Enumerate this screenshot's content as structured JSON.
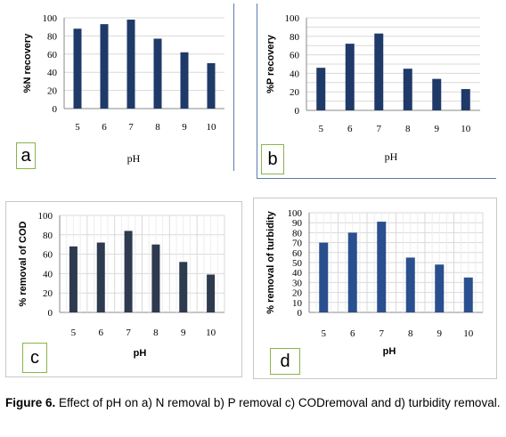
{
  "chart_data": [
    {
      "id": "a",
      "type": "bar",
      "categories": [
        "5",
        "6",
        "7",
        "8",
        "9",
        "10"
      ],
      "values": [
        88,
        93,
        98,
        77,
        62,
        50
      ],
      "xlabel": "pH",
      "ylabel": "%N recovery",
      "ylim": [
        0,
        100
      ],
      "yticks": [
        0,
        20,
        40,
        60,
        80,
        100
      ],
      "grid": true,
      "bar_color": "#1f3a68",
      "panel_label": "a"
    },
    {
      "id": "b",
      "type": "bar",
      "categories": [
        "5",
        "6",
        "7",
        "8",
        "9",
        "10"
      ],
      "values": [
        46,
        72,
        83,
        45,
        34,
        23
      ],
      "xlabel": "pH",
      "ylabel": "%P recovery",
      "ylim": [
        0,
        100
      ],
      "yticks": [
        0,
        10,
        20,
        30,
        40,
        50,
        60,
        70,
        80,
        90,
        100
      ],
      "ytick_labels_shown": [
        0,
        20,
        40,
        60,
        80,
        100
      ],
      "grid": true,
      "bar_color": "#1f3a68",
      "panel_label": "b"
    },
    {
      "id": "c",
      "type": "bar",
      "categories": [
        "5",
        "6",
        "7",
        "8",
        "9",
        "10"
      ],
      "values": [
        68,
        72,
        84,
        70,
        52,
        39
      ],
      "xlabel": "pH",
      "ylabel": "% removal of COD",
      "ylim": [
        0,
        100
      ],
      "yticks": [
        0,
        20,
        40,
        60,
        80,
        100
      ],
      "grid": true,
      "bar_color": "#2e3a4e",
      "panel_label": "c"
    },
    {
      "id": "d",
      "type": "bar",
      "categories": [
        "5",
        "6",
        "7",
        "8",
        "9",
        "10"
      ],
      "values": [
        70,
        80,
        91,
        55,
        48,
        35
      ],
      "xlabel": "pH",
      "ylabel": "% removal of turbidity",
      "ylim": [
        0,
        100
      ],
      "yticks": [
        0,
        10,
        20,
        30,
        40,
        50,
        60,
        70,
        80,
        90,
        100
      ],
      "ytick_labels_shown": [
        0,
        10,
        20,
        30,
        40,
        50,
        60,
        70,
        80,
        90,
        100
      ],
      "grid": true,
      "bar_color": "#2a4f8f",
      "panel_label": "d"
    }
  ],
  "caption": {
    "label": "Figure 6.",
    "text": " Effect of pH on a) N removal b) P removal c) CODremoval and d) turbidity removal."
  },
  "colors": {
    "panel_border": "#c8c8c8",
    "panel_border_ab": "#5a7bb0",
    "tag_border": "#8ab44a",
    "grid": "#d9d9d9"
  }
}
